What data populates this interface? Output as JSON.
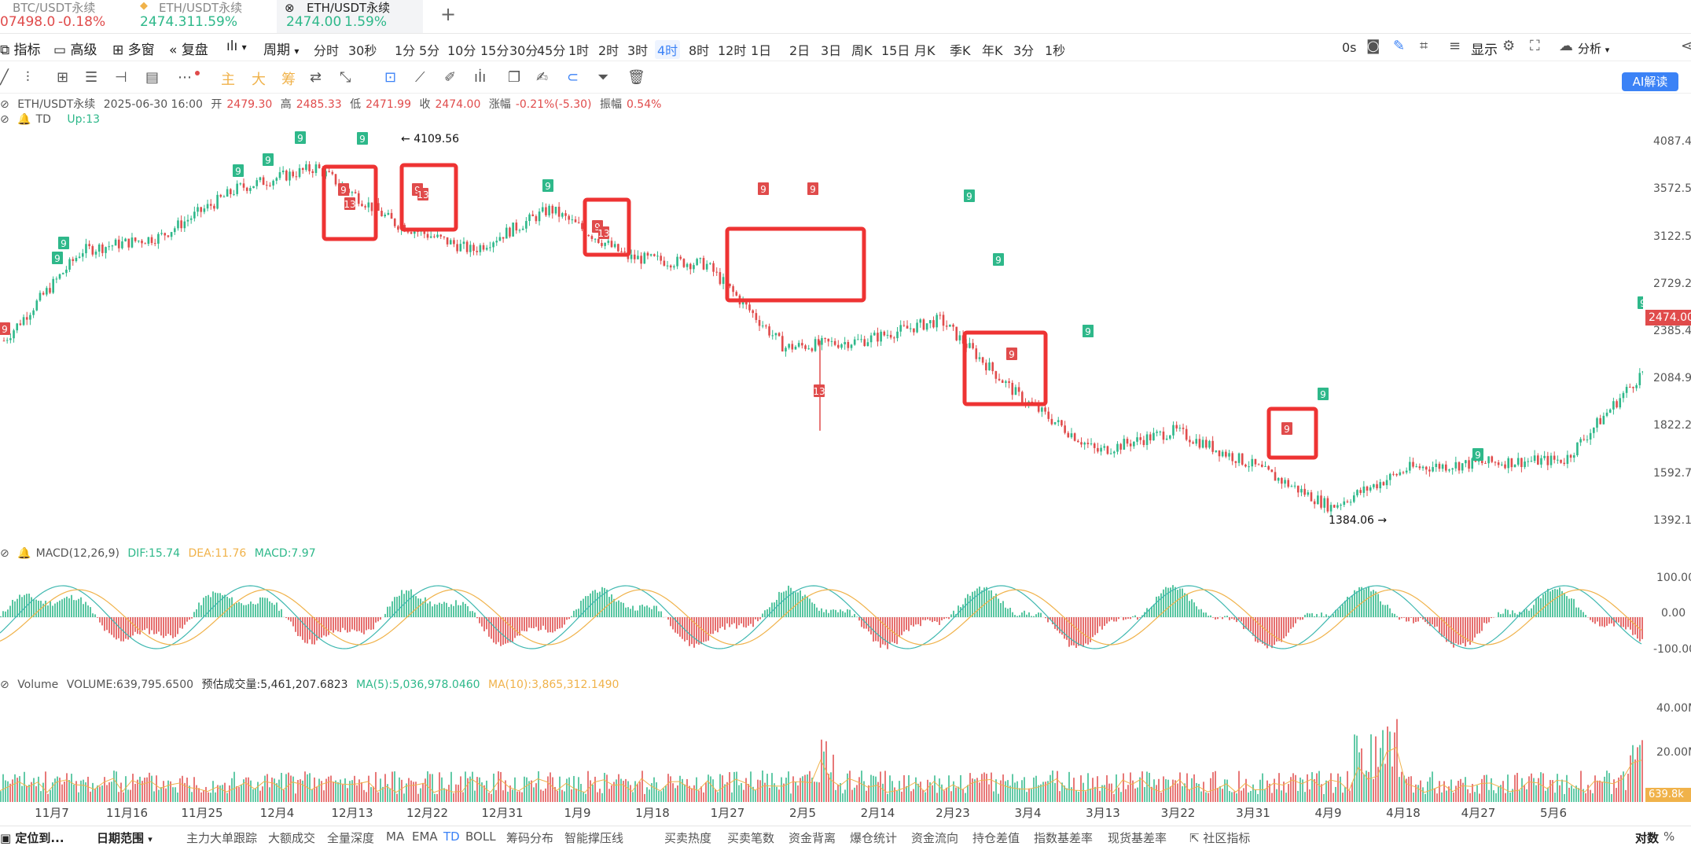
{
  "tabs": [
    {
      "name": "BTC/USDT永续",
      "price": "07498.0",
      "change": "-0.18%",
      "dir": "dn",
      "active": false,
      "x": 0
    },
    {
      "name": "ETH/USDT永续",
      "price": "2474.31",
      "change": "1.59%",
      "dir": "up",
      "active": false,
      "x": 176
    },
    {
      "name": "ETH/USDT永续",
      "price": "2474.00",
      "change": "1.59%",
      "dir": "up",
      "active": true,
      "x": 358
    }
  ],
  "add_tab": "+",
  "toolbar1": {
    "indicator": "指标",
    "advanced": "高级",
    "multi": "多窗",
    "replay": "复盘",
    "period": "周期",
    "intervals": [
      "分时",
      "30秒",
      "1分",
      "5分",
      "10分",
      "15分",
      "30分",
      "45分",
      "1时",
      "2时",
      "3时",
      "4时",
      "8时",
      "12时",
      "1日",
      "2日",
      "3日",
      "周K",
      "15日",
      "月K",
      "季K",
      "年K",
      "3分",
      "1秒"
    ],
    "selected_interval": "4时",
    "countdown": "0s",
    "display": "显示",
    "analysis": "分析",
    "ai": "AI解读"
  },
  "toolbar2": {
    "main": "主",
    "big": "大",
    "chip": "筹"
  },
  "info": {
    "symbol": "ETH/USDT永续",
    "date": "2025-06-30 16:00",
    "open_l": "开",
    "open": "2479.30",
    "high_l": "高",
    "high": "2485.33",
    "low_l": "低",
    "low": "2471.99",
    "close_l": "收",
    "close": "2474.00",
    "chg_l": "涨幅",
    "chg": "-0.21%(-5.30)",
    "amp_l": "振幅",
    "amp": "0.54%",
    "td": "TD",
    "td_up": "Up:13"
  },
  "price_axis": [
    "4087.45",
    "3572.56",
    "3122.59",
    "2729.2",
    "2385.41",
    "2084.93",
    "1822.28",
    "1592.77",
    "1392.1"
  ],
  "last_price": "2474.00",
  "annotations": {
    "high": "4109.56",
    "low": "1384.06"
  },
  "macd": {
    "label": "MACD(12,26,9)",
    "dif": "DIF:15.74",
    "dea": "DEA:11.76",
    "macd": "MACD:7.97",
    "axis": [
      "100.00",
      "0.00",
      "-100.00"
    ]
  },
  "volume": {
    "label": "Volume",
    "vol": "VOLUME:639,795.6500",
    "est": "预估成交量:5,461,207.6823",
    "ma5": "MA(5):5,036,978.0460",
    "ma10": "MA(10):3,865,312.1490",
    "axis": [
      "40.00M",
      "20.00M"
    ],
    "tag": "639.8k"
  },
  "x_labels": [
    "11月7",
    "11月16",
    "11月25",
    "12月4",
    "12月13",
    "12月22",
    "12月31",
    "1月9",
    "1月18",
    "1月27",
    "2月5",
    "2月14",
    "2月23",
    "3月4",
    "3月13",
    "3月22",
    "3月31",
    "4月9",
    "4月18",
    "4月27",
    "5月6"
  ],
  "bottom": {
    "locate": "定位到...",
    "range": "日期范围",
    "items": [
      "主力大单跟踪",
      "大额成交",
      "全量深度",
      "MA",
      "EMA",
      "TD",
      "BOLL",
      "筹码分布",
      "智能撑压线",
      "买卖热度",
      "买卖笔数",
      "资金背离",
      "爆仓统计",
      "资金流向",
      "持仓差值",
      "指数基差率",
      "现货基差率",
      "社区指标"
    ],
    "selected": "TD",
    "right": [
      "对数",
      "%"
    ]
  },
  "td_labels": [
    "9",
    "13"
  ],
  "colors": {
    "up": "#2eb88a",
    "down": "#e04b4b",
    "dif": "#3fb8b0",
    "dea": "#f0b24a",
    "box": "#ee3333",
    "accent": "#3b82f6"
  },
  "chart_data": {
    "type": "candlestick",
    "title": "ETH/USDT永续 4时",
    "x": [
      "11月7",
      "11月16",
      "11月25",
      "12月4",
      "12月13",
      "12月22",
      "12月31",
      "1月9",
      "1月18",
      "1月27",
      "2月5",
      "2月14",
      "2月23",
      "3月4",
      "3月13",
      "3月22",
      "3月31",
      "4月9",
      "4月18",
      "4月27",
      "5月6",
      "6月30"
    ],
    "close": [
      2700,
      3350,
      3450,
      3800,
      3950,
      3550,
      3350,
      3650,
      3300,
      3250,
      2650,
      2700,
      2850,
      2300,
      1900,
      2050,
      1800,
      1500,
      1780,
      1820,
      1840,
      2474
    ],
    "ylim": [
      1300,
      4250
    ],
    "high_marker": 4109.56,
    "low_marker": 1384.06,
    "td_up_9": [
      "11月7",
      "11月25",
      "12月4",
      "12月13",
      "1月3",
      "2月18",
      "2月23",
      "3月7",
      "4月3",
      "4月16",
      "6月30"
    ],
    "td_down_9": [
      "11月3",
      "12月11",
      "12月19",
      "1月10",
      "1月30",
      "2月5",
      "3月1",
      "3月29"
    ],
    "td_down_13": [
      "12月12",
      "12月21",
      "1月11",
      "2月3"
    ],
    "highlight_boxes": 5
  }
}
